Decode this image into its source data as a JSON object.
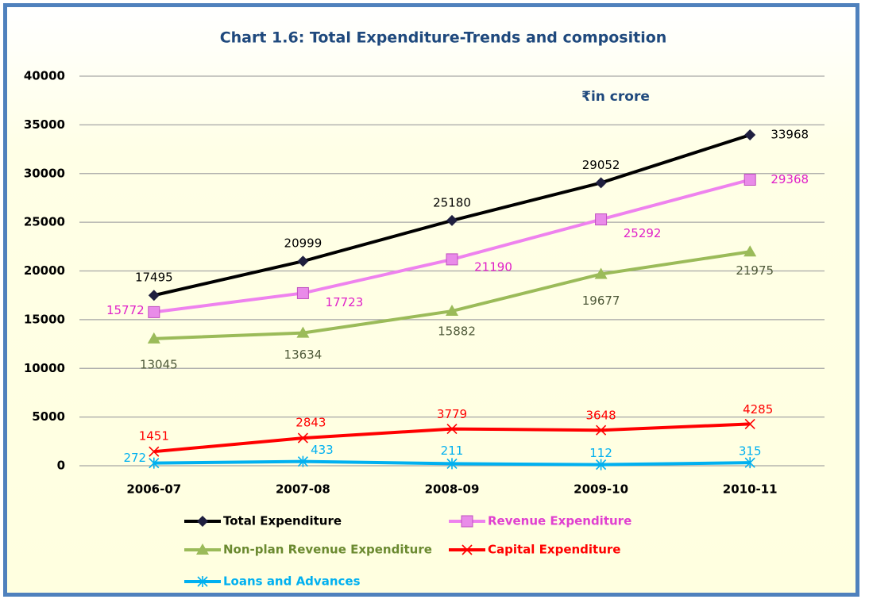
{
  "chart_data": {
    "type": "line",
    "title": "Chart 1.6: Total Expenditure-Trends and composition",
    "annotation": "₹in crore",
    "categories": [
      "2006-07",
      "2007-08",
      "2008-09",
      "2009-10",
      "2010-11"
    ],
    "ylim": [
      0,
      40000
    ],
    "yticks": [
      0,
      5000,
      10000,
      15000,
      20000,
      25000,
      30000,
      35000,
      40000
    ],
    "grid": true,
    "series": [
      {
        "name": "Total Expenditure",
        "color": "#000000",
        "marker": "diamond",
        "values": [
          17495,
          20999,
          25180,
          29052,
          33968
        ]
      },
      {
        "name": "Revenue Expenditure",
        "color": "#ee82ee",
        "marker": "square",
        "values": [
          15772,
          17723,
          21190,
          25292,
          29368
        ]
      },
      {
        "name": "Non-plan Revenue Expenditure",
        "color": "#9bbb59",
        "marker": "triangle",
        "values": [
          13045,
          13634,
          15882,
          19677,
          21975
        ]
      },
      {
        "name": "Capital Expenditure",
        "color": "#ff0000",
        "marker": "x",
        "values": [
          1451,
          2843,
          3779,
          3648,
          4285
        ]
      },
      {
        "name": "Loans and Advances",
        "color": "#00b0f0",
        "marker": "star",
        "values": [
          272,
          433,
          211,
          112,
          315
        ]
      }
    ]
  }
}
